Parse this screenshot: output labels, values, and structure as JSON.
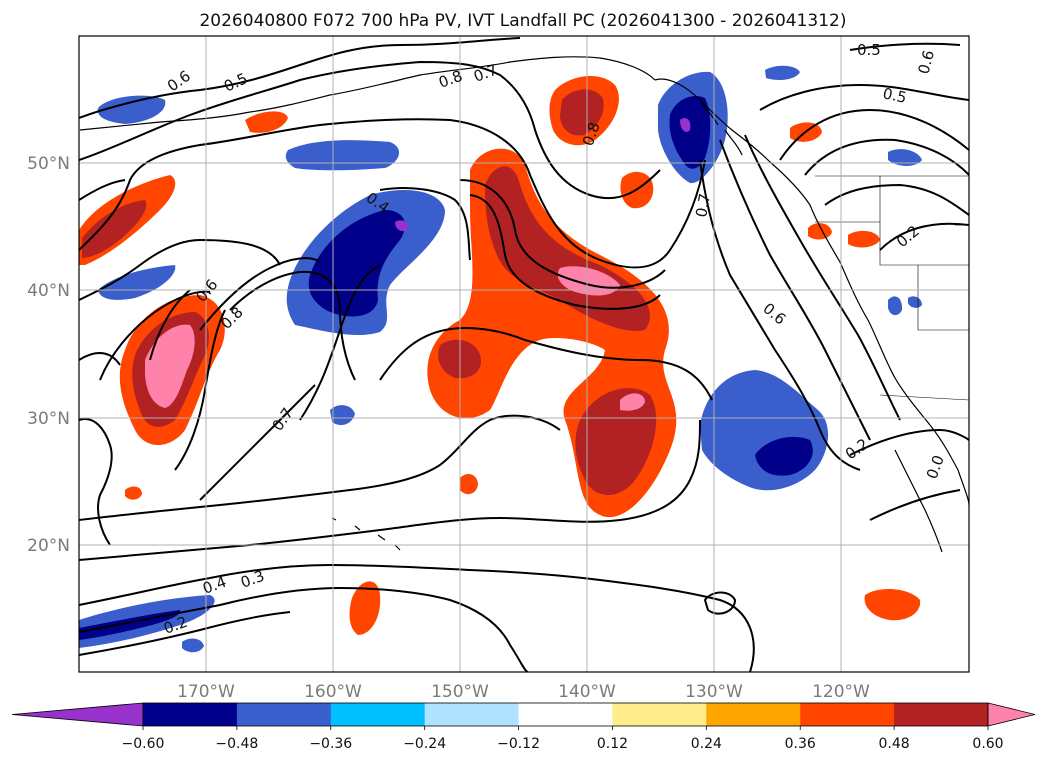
{
  "title": "2026040800 F072 700 hPa PV, IVT Landfall PC (2026041300 - 2026041312)",
  "map": {
    "lon_range": [
      180,
      110
    ],
    "lat_range": [
      10,
      60
    ],
    "lat_ticks": [
      {
        "value": 50,
        "label": "50°N"
      },
      {
        "value": 40,
        "label": "40°N"
      },
      {
        "value": 30,
        "label": "30°N"
      },
      {
        "value": 20,
        "label": "20°N"
      }
    ],
    "lon_ticks": [
      {
        "value": 170,
        "label": "170°W"
      },
      {
        "value": 160,
        "label": "160°W"
      },
      {
        "value": 150,
        "label": "150°W"
      },
      {
        "value": 140,
        "label": "140°W"
      },
      {
        "value": 130,
        "label": "130°W"
      },
      {
        "value": 120,
        "label": "120°W"
      }
    ],
    "contour_labels": [
      "0.6",
      "0.5",
      "0.8",
      "0.7",
      "0.8",
      "0.6",
      "0.5",
      "0.5",
      "0.7",
      "0.2",
      "0.6",
      "0.8",
      "0.4",
      "0.7",
      "0.6",
      "0.4",
      "0.3",
      "0.2",
      "0.2",
      "0.0"
    ]
  },
  "colorbar": {
    "colors": [
      "#9932cc",
      "#00008b",
      "#3a5fcd",
      "#00bfff",
      "#b0e2ff",
      "#ffffff",
      "#ffec8b",
      "#ffa500",
      "#ff4500",
      "#b22222",
      "#ff82ab"
    ],
    "tick_labels": [
      "−0.60",
      "−0.48",
      "−0.36",
      "−0.24",
      "−0.12",
      "0.12",
      "0.24",
      "0.36",
      "0.48",
      "0.60"
    ]
  }
}
